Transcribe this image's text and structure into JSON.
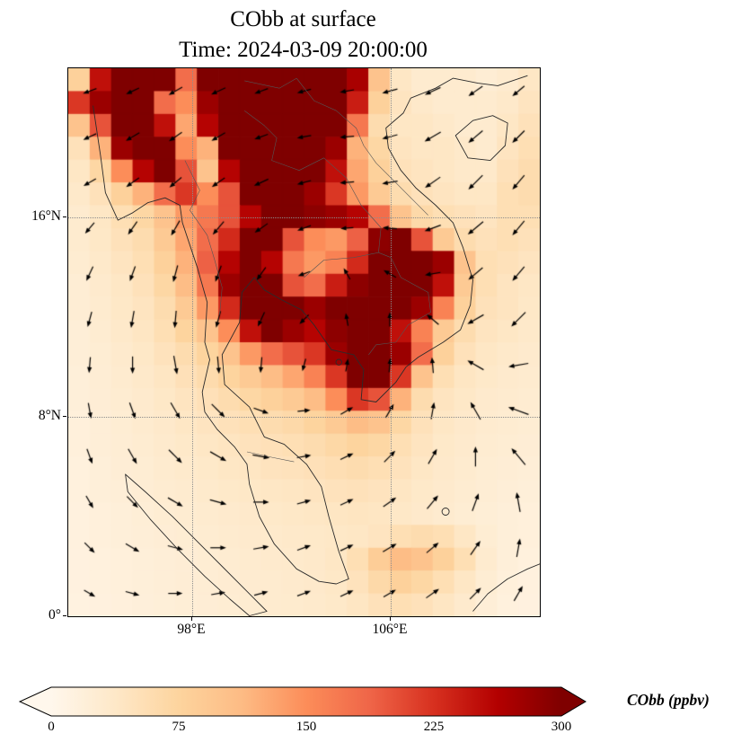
{
  "figure": {
    "title": "CObb at surface",
    "subtitle": "Time: 2024-03-09 20:00:00"
  },
  "axes": {
    "lon_min": 93,
    "lon_max": 112,
    "lat_min": 0,
    "lat_max": 22,
    "xticks": [
      {
        "label": "98°E",
        "lon": 98
      },
      {
        "label": "106°E",
        "lon": 106
      }
    ],
    "yticks": [
      {
        "label": "16°N",
        "lat": 16
      },
      {
        "label": "8°N",
        "lat": 8
      },
      {
        "label": "0°",
        "lat": 0
      }
    ]
  },
  "colorbar": {
    "label": "CObb (ppbv)",
    "tick_labels": [
      "0",
      "75",
      "150",
      "225",
      "300"
    ],
    "vmin": 0,
    "vmax": 300,
    "extend": "both",
    "under_color": "#fff7ec",
    "over_color": "#7f0000"
  },
  "chart_data": {
    "type": "heatmap",
    "title": "CObb at surface",
    "subtitle": "Time: 2024-03-09 20:00:00",
    "variable": "CObb",
    "units": "ppbv",
    "lon_range": [
      93,
      112
    ],
    "lat_range": [
      0,
      22
    ],
    "colormap": {
      "name": "OrRd",
      "vmax": 300,
      "stops": [
        [
          0.0,
          "#fff7ec"
        ],
        [
          0.125,
          "#fee8c8"
        ],
        [
          0.25,
          "#fdd49e"
        ],
        [
          0.375,
          "#fdbb84"
        ],
        [
          0.5,
          "#fc8d59"
        ],
        [
          0.625,
          "#ef6548"
        ],
        [
          0.75,
          "#d7301f"
        ],
        [
          0.875,
          "#b30000"
        ],
        [
          1.0,
          "#7f0000"
        ]
      ]
    },
    "grid": {
      "ncols": 22,
      "nrows": 24,
      "orientation": "row0-is-north",
      "values": [
        [
          80,
          250,
          320,
          330,
          300,
          180,
          300,
          330,
          330,
          310,
          330,
          330,
          310,
          270,
          100,
          40,
          30,
          30,
          30,
          25,
          30,
          40
        ],
        [
          220,
          280,
          330,
          320,
          180,
          150,
          280,
          330,
          330,
          330,
          330,
          330,
          330,
          240,
          80,
          45,
          35,
          30,
          30,
          30,
          35,
          45
        ],
        [
          100,
          200,
          310,
          330,
          250,
          130,
          260,
          320,
          330,
          330,
          330,
          330,
          300,
          170,
          60,
          40,
          40,
          35,
          30,
          30,
          40,
          50
        ],
        [
          50,
          120,
          280,
          330,
          300,
          150,
          120,
          300,
          330,
          330,
          330,
          320,
          280,
          120,
          70,
          45,
          40,
          40,
          35,
          30,
          45,
          55
        ],
        [
          40,
          70,
          150,
          260,
          310,
          200,
          100,
          260,
          330,
          330,
          320,
          300,
          250,
          130,
          80,
          50,
          45,
          40,
          35,
          35,
          50,
          60
        ],
        [
          35,
          50,
          80,
          120,
          180,
          220,
          150,
          200,
          300,
          320,
          300,
          280,
          220,
          140,
          90,
          60,
          50,
          45,
          40,
          40,
          55,
          60
        ],
        [
          30,
          40,
          55,
          70,
          100,
          140,
          170,
          200,
          260,
          310,
          300,
          290,
          280,
          260,
          180,
          100,
          65,
          55,
          50,
          45,
          55,
          55
        ],
        [
          30,
          38,
          50,
          60,
          90,
          130,
          180,
          230,
          300,
          320,
          200,
          150,
          140,
          190,
          290,
          310,
          200,
          90,
          60,
          50,
          55,
          50
        ],
        [
          28,
          35,
          45,
          55,
          80,
          120,
          190,
          260,
          330,
          260,
          170,
          140,
          160,
          230,
          310,
          330,
          300,
          280,
          100,
          55,
          50,
          45
        ],
        [
          25,
          32,
          40,
          50,
          70,
          110,
          170,
          280,
          330,
          300,
          200,
          180,
          240,
          290,
          330,
          330,
          310,
          250,
          90,
          55,
          45,
          40
        ],
        [
          25,
          30,
          38,
          45,
          60,
          90,
          140,
          230,
          320,
          330,
          300,
          280,
          300,
          330,
          330,
          320,
          280,
          160,
          80,
          50,
          45,
          38
        ],
        [
          22,
          28,
          35,
          42,
          55,
          75,
          100,
          150,
          250,
          300,
          280,
          260,
          290,
          320,
          300,
          250,
          160,
          90,
          60,
          45,
          40,
          35
        ],
        [
          22,
          26,
          32,
          38,
          48,
          60,
          75,
          100,
          140,
          180,
          200,
          220,
          280,
          320,
          330,
          280,
          180,
          80,
          50,
          40,
          35,
          32
        ],
        [
          20,
          25,
          30,
          35,
          42,
          52,
          62,
          75,
          90,
          110,
          130,
          160,
          220,
          300,
          320,
          220,
          100,
          55,
          42,
          36,
          32,
          30
        ],
        [
          20,
          24,
          28,
          32,
          38,
          45,
          52,
          60,
          70,
          80,
          90,
          110,
          150,
          220,
          200,
          120,
          60,
          45,
          38,
          32,
          30,
          28
        ],
        [
          18,
          22,
          26,
          30,
          34,
          40,
          45,
          50,
          55,
          60,
          65,
          75,
          90,
          110,
          100,
          70,
          50,
          40,
          34,
          30,
          28,
          26
        ],
        [
          18,
          22,
          25,
          28,
          32,
          36,
          40,
          44,
          48,
          52,
          55,
          60,
          68,
          75,
          70,
          55,
          45,
          36,
          32,
          28,
          26,
          24
        ],
        [
          16,
          20,
          24,
          26,
          30,
          33,
          36,
          40,
          42,
          46,
          48,
          52,
          56,
          60,
          55,
          48,
          40,
          34,
          30,
          26,
          24,
          22
        ],
        [
          16,
          20,
          22,
          25,
          28,
          30,
          33,
          36,
          38,
          40,
          42,
          45,
          48,
          50,
          46,
          42,
          36,
          32,
          28,
          25,
          22,
          20
        ],
        [
          15,
          18,
          20,
          23,
          26,
          28,
          30,
          32,
          34,
          36,
          38,
          40,
          42,
          44,
          42,
          38,
          34,
          30,
          26,
          23,
          20,
          18
        ],
        [
          15,
          18,
          20,
          22,
          24,
          26,
          28,
          30,
          32,
          33,
          35,
          36,
          38,
          40,
          45,
          55,
          60,
          55,
          40,
          26,
          20,
          18
        ],
        [
          14,
          16,
          18,
          20,
          22,
          24,
          26,
          28,
          30,
          32,
          33,
          35,
          40,
          55,
          85,
          110,
          100,
          80,
          55,
          30,
          20,
          16
        ],
        [
          14,
          16,
          18,
          20,
          22,
          24,
          25,
          27,
          29,
          30,
          32,
          34,
          38,
          48,
          65,
          80,
          70,
          55,
          40,
          26,
          18,
          15
        ],
        [
          13,
          15,
          17,
          19,
          21,
          23,
          24,
          26,
          28,
          30,
          31,
          33,
          36,
          42,
          50,
          55,
          50,
          42,
          32,
          22,
          16,
          14
        ]
      ]
    },
    "wind": {
      "ncols": 11,
      "nrows": 12,
      "angle_convention": "degrees CCW from east (0=E, 90=N)",
      "angles_deg": [
        [
          200,
          205,
          210,
          205,
          200,
          195,
          190,
          195,
          205,
          215,
          220
        ],
        [
          205,
          210,
          215,
          210,
          200,
          190,
          185,
          195,
          210,
          220,
          225
        ],
        [
          210,
          215,
          220,
          215,
          205,
          195,
          185,
          190,
          215,
          225,
          230
        ],
        [
          230,
          235,
          240,
          230,
          215,
          200,
          185,
          175,
          200,
          220,
          230
        ],
        [
          245,
          250,
          255,
          250,
          235,
          200,
          120,
          150,
          190,
          220,
          230
        ],
        [
          255,
          260,
          265,
          255,
          245,
          225,
          100,
          90,
          140,
          210,
          225
        ],
        [
          265,
          270,
          280,
          275,
          265,
          255,
          80,
          85,
          95,
          150,
          190
        ],
        [
          280,
          290,
          300,
          315,
          340,
          5,
          30,
          60,
          80,
          120,
          160
        ],
        [
          290,
          300,
          315,
          330,
          350,
          10,
          25,
          45,
          60,
          90,
          130
        ],
        [
          300,
          315,
          330,
          345,
          0,
          15,
          25,
          35,
          50,
          70,
          100
        ],
        [
          315,
          330,
          345,
          0,
          10,
          20,
          25,
          30,
          40,
          55,
          80
        ],
        [
          330,
          345,
          0,
          10,
          15,
          20,
          25,
          30,
          35,
          45,
          60
        ]
      ],
      "speed": [
        [
          0.5,
          0.5,
          0.6,
          0.6,
          0.5,
          0.5,
          0.5,
          0.6,
          0.7,
          0.7,
          0.6
        ],
        [
          0.5,
          0.6,
          0.6,
          0.6,
          0.5,
          0.5,
          0.5,
          0.6,
          0.8,
          0.8,
          0.7
        ],
        [
          0.5,
          0.6,
          0.6,
          0.6,
          0.6,
          0.5,
          0.5,
          0.6,
          0.8,
          0.9,
          0.8
        ],
        [
          0.5,
          0.6,
          0.7,
          0.7,
          0.6,
          0.5,
          0.4,
          0.5,
          0.7,
          0.9,
          0.8
        ],
        [
          0.6,
          0.6,
          0.7,
          0.7,
          0.6,
          0.4,
          0.4,
          0.5,
          0.6,
          0.8,
          0.8
        ],
        [
          0.6,
          0.7,
          0.7,
          0.7,
          0.6,
          0.4,
          0.4,
          0.5,
          0.6,
          0.8,
          0.9
        ],
        [
          0.6,
          0.7,
          0.8,
          0.7,
          0.6,
          0.4,
          0.4,
          0.5,
          0.6,
          0.8,
          0.9
        ],
        [
          0.6,
          0.7,
          0.8,
          0.8,
          0.6,
          0.4,
          0.5,
          0.6,
          0.7,
          0.9,
          1.0
        ],
        [
          0.6,
          0.7,
          0.8,
          0.8,
          0.7,
          0.5,
          0.5,
          0.6,
          0.7,
          0.9,
          1.0
        ],
        [
          0.5,
          0.6,
          0.7,
          0.7,
          0.6,
          0.5,
          0.5,
          0.6,
          0.7,
          0.8,
          0.9
        ],
        [
          0.5,
          0.6,
          0.6,
          0.6,
          0.6,
          0.5,
          0.5,
          0.6,
          0.6,
          0.7,
          0.8
        ],
        [
          0.4,
          0.5,
          0.5,
          0.5,
          0.5,
          0.5,
          0.5,
          0.5,
          0.6,
          0.6,
          0.7
        ]
      ]
    }
  },
  "style_colors": {
    "coastline": "#2b2b2b",
    "country_border": "#555555",
    "gridline": "#8d8d8d",
    "arrow": "#000000",
    "background": "#ffffff"
  }
}
